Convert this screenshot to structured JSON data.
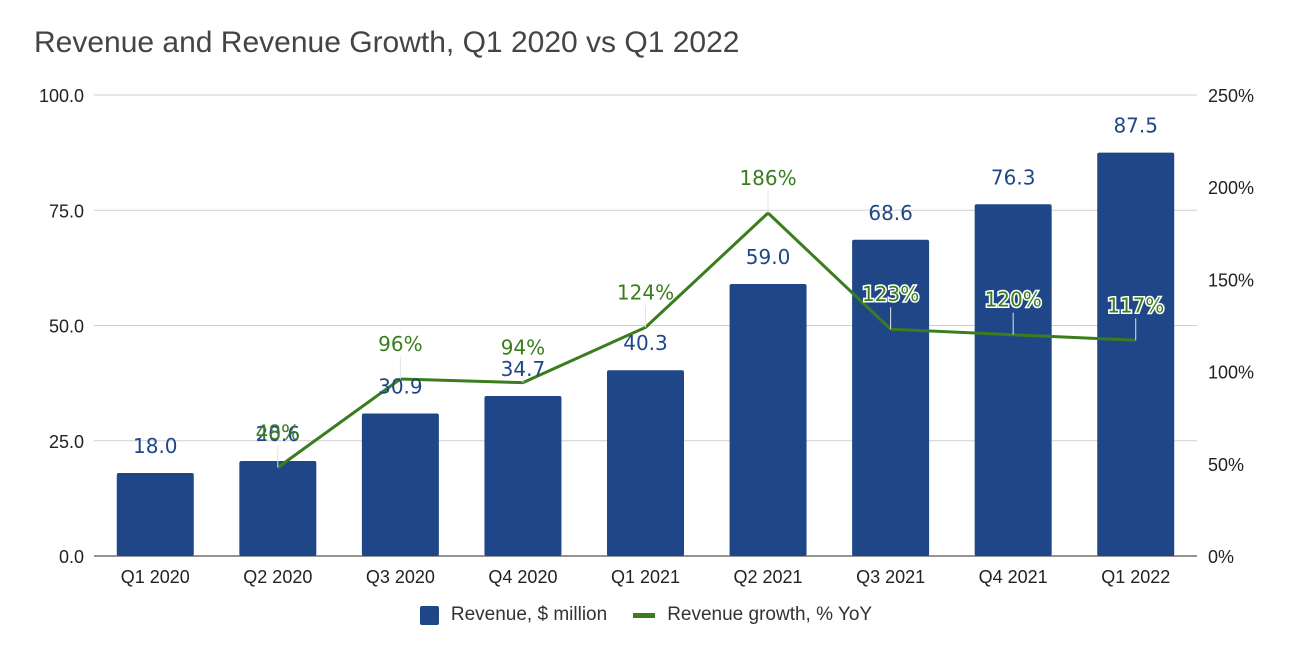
{
  "chart_data": {
    "type": "bar",
    "title": "Revenue and Revenue Growth, Q1 2020 vs Q1 2022",
    "categories": [
      "Q1 2020",
      "Q2 2020",
      "Q3 2020",
      "Q4 2020",
      "Q1 2021",
      "Q2 2021",
      "Q3 2021",
      "Q4 2021",
      "Q1 2022"
    ],
    "series": [
      {
        "name": "Revenue, $ million",
        "type": "bar",
        "axis": "left",
        "color": "#1f4788",
        "values": [
          18.0,
          20.6,
          30.9,
          34.7,
          40.3,
          59.0,
          68.6,
          76.3,
          87.5
        ],
        "labels": [
          "18.0",
          "20.6",
          "30.9",
          "34.7",
          "40.3",
          "59.0",
          "68.6",
          "76.3",
          "87.5"
        ]
      },
      {
        "name": "Revenue growth, % YoY",
        "type": "line",
        "axis": "right",
        "color": "#3a7d1e",
        "values": [
          null,
          48,
          96,
          94,
          124,
          186,
          123,
          120,
          117
        ],
        "labels": [
          "",
          "48%",
          "96%",
          "94%",
          "124%",
          "186%",
          "123%",
          "120%",
          "117%"
        ]
      }
    ],
    "y_left": {
      "min": 0,
      "max": 100,
      "ticks": [
        0,
        25,
        50,
        75,
        100
      ],
      "tick_labels": [
        "0.0",
        "25.0",
        "50.0",
        "75.0",
        "100.0"
      ]
    },
    "y_right": {
      "min": 0,
      "max": 250,
      "ticks": [
        0,
        50,
        100,
        150,
        200,
        250
      ],
      "tick_labels": [
        "0%",
        "50%",
        "100%",
        "150%",
        "200%",
        "250%"
      ]
    },
    "grid": true,
    "legend_position": "bottom",
    "legend": [
      "Revenue, $ million",
      "Revenue growth, % YoY"
    ]
  }
}
